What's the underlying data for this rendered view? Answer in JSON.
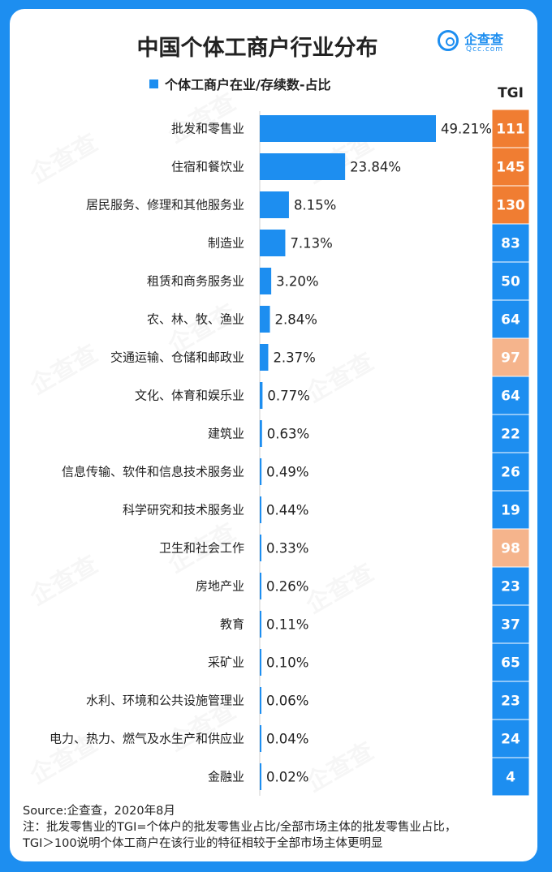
{
  "title": "中国个体工商户行业分布",
  "logo": {
    "cn": "企查查",
    "en": "Qcc.com"
  },
  "watermark": "企查查",
  "tgi_header": "TGI",
  "footer": {
    "source": "Source:企查查，2020年8月",
    "note1": "注：批发零售业的TGI=个体户的批发零售业占比/全部市场主体的批发零售业占比，",
    "note2": "TGI＞100说明个体工商户在该行业的特征相较于全部市场主体更明显"
  },
  "colors": {
    "bar": "#1d8ef0",
    "tgi_high": "#f07d32",
    "tgi_mid": "#f5b48c",
    "tgi_low": "#1d8ef0"
  },
  "chart_data": {
    "type": "bar",
    "orientation": "horizontal",
    "legend": "个体工商户在业/存续数-占比",
    "categories": [
      "批发和零售业",
      "住宿和餐饮业",
      "居民服务、修理和其他服务业",
      "制造业",
      "租赁和商务服务业",
      "农、林、牧、渔业",
      "交通运输、仓储和邮政业",
      "文化、体育和娱乐业",
      "建筑业",
      "信息传输、软件和信息技术服务业",
      "科学研究和技术服务业",
      "卫生和社会工作",
      "房地产业",
      "教育",
      "采矿业",
      "水利、环境和公共设施管理业",
      "电力、热力、燃气及水生产和供应业",
      "金融业"
    ],
    "values": [
      49.21,
      23.84,
      8.15,
      7.13,
      3.2,
      2.84,
      2.37,
      0.77,
      0.63,
      0.49,
      0.44,
      0.33,
      0.26,
      0.11,
      0.1,
      0.06,
      0.04,
      0.02
    ],
    "value_labels": [
      "49.21%",
      "23.84%",
      "8.15%",
      "7.13%",
      "3.20%",
      "2.84%",
      "2.37%",
      "0.77%",
      "0.63%",
      "0.49%",
      "0.44%",
      "0.33%",
      "0.26%",
      "0.11%",
      "0.10%",
      "0.06%",
      "0.04%",
      "0.02%"
    ],
    "tgi": [
      111,
      145,
      130,
      83,
      50,
      64,
      97,
      64,
      22,
      26,
      19,
      98,
      23,
      37,
      65,
      23,
      24,
      4
    ],
    "tgi_levels": [
      "high",
      "high",
      "high",
      "low",
      "low",
      "low",
      "mid",
      "low",
      "low",
      "low",
      "low",
      "mid",
      "low",
      "low",
      "low",
      "low",
      "low",
      "low"
    ]
  }
}
